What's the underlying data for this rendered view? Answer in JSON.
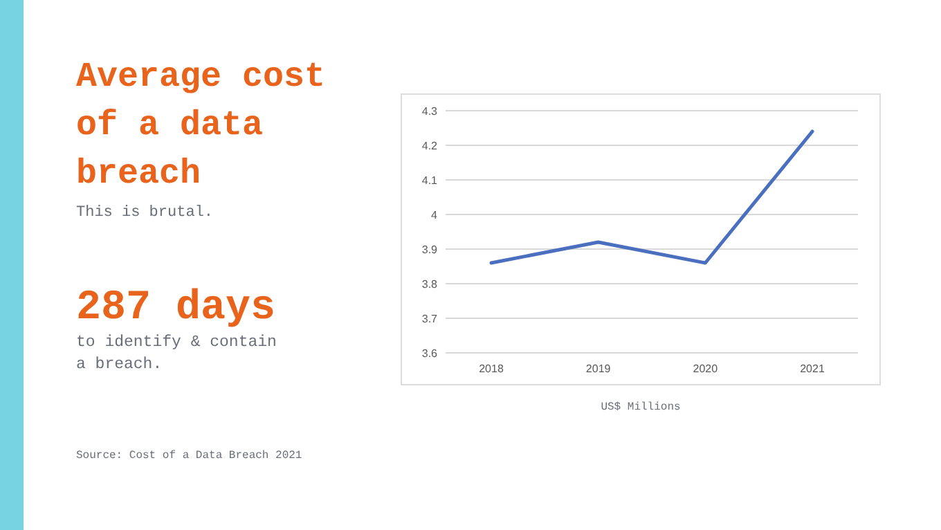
{
  "chart_data": {
    "type": "line",
    "title": "Average cost of a data breach",
    "subtitle": "This is brutal.",
    "xlabel": "US$ Millions",
    "annotations": [
      "287 days",
      "to identify & contain a breach.",
      "Source: Cost of a Data Breach 2021"
    ],
    "categories": [
      "2018",
      "2019",
      "2020",
      "2021"
    ],
    "series": [
      {
        "color": "#4a6fbe",
        "values": [
          3.86,
          3.92,
          3.86,
          4.24
        ]
      }
    ],
    "ylim": [
      3.6,
      4.3
    ],
    "yticks": [
      3.6,
      3.7,
      3.8,
      3.9,
      4,
      4.1,
      4.2,
      4.3
    ],
    "grid": "y",
    "marker": "none",
    "line_style": "solid"
  }
}
